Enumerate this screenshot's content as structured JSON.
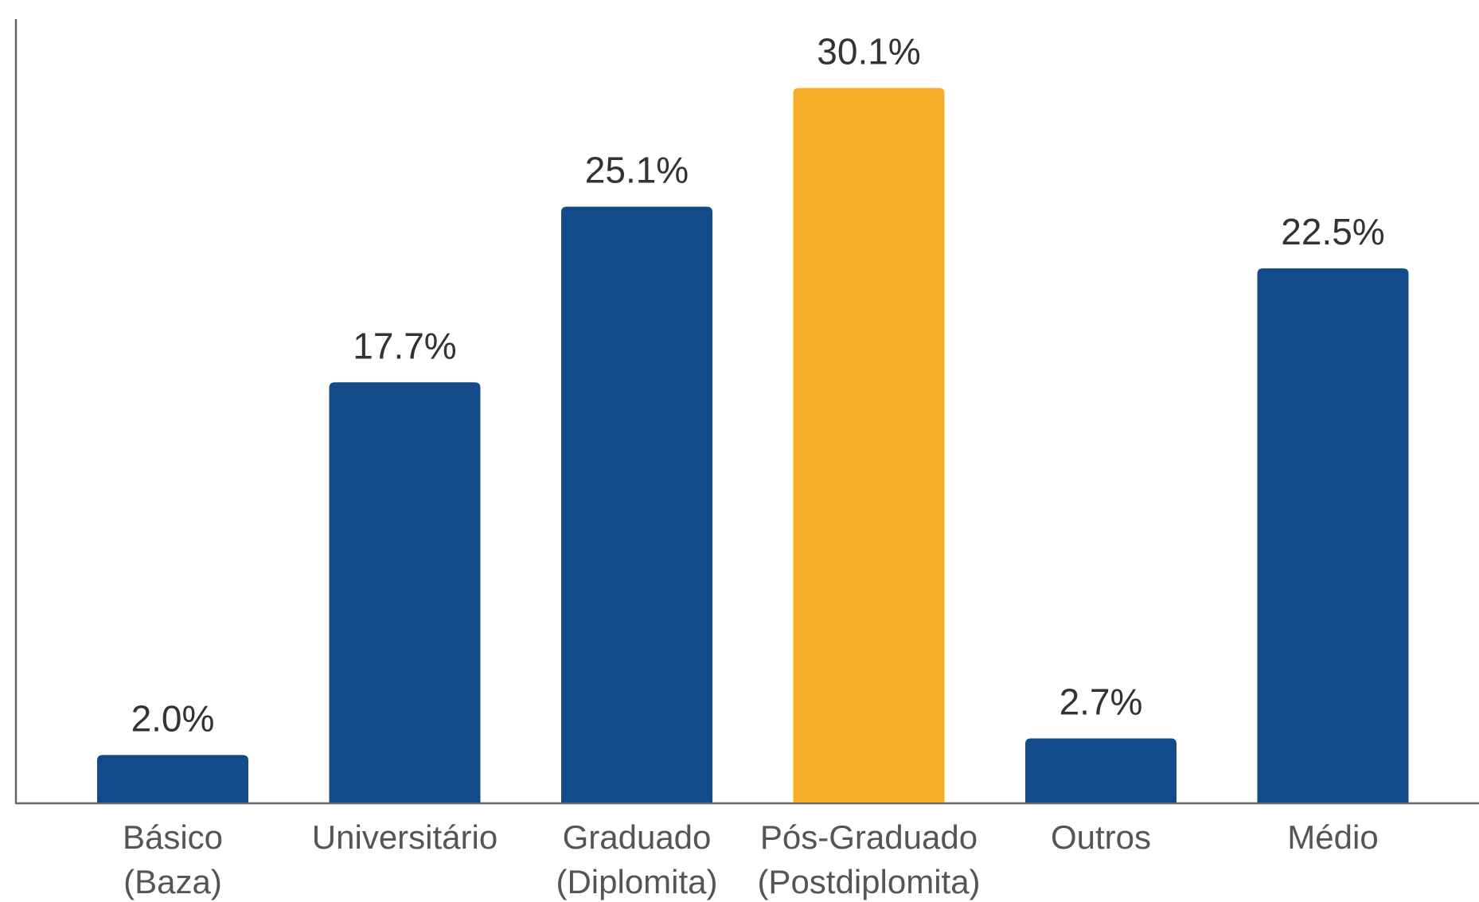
{
  "chart_data": {
    "type": "bar",
    "categories": [
      "Básico\n(Baza)",
      "Universitário",
      "Graduado\n(Diplomita)",
      "Pós-Graduado\n(Postdiplomita)",
      "Outros",
      "Médio"
    ],
    "values": [
      2.0,
      17.7,
      25.1,
      30.1,
      2.7,
      22.5
    ],
    "value_labels": [
      "2.0%",
      "17.7%",
      "25.1%",
      "30.1%",
      "2.7%",
      "22.5%"
    ],
    "colors": [
      "#134b8a",
      "#134b8a",
      "#134b8a",
      "#f5ae28",
      "#134b8a",
      "#134b8a"
    ],
    "ylim": [
      0,
      33
    ]
  }
}
